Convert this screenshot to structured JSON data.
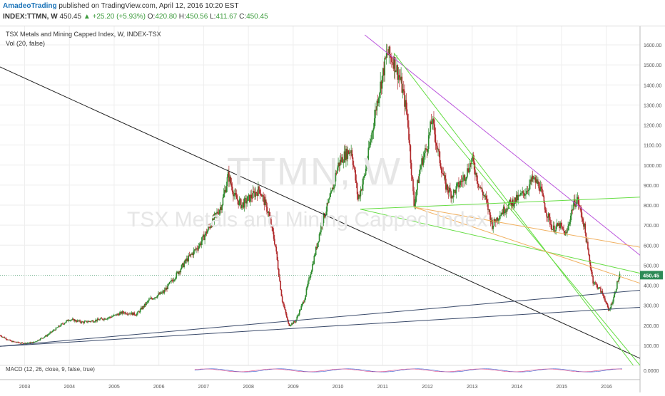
{
  "header": {
    "author": "AmadeoTrading",
    "published_text": "published on TradingView.com, April 12, 2016 10:20 EST",
    "symbol_line": "INDEX:TTMN, W",
    "last": "450.45",
    "change": "▲ +25.20 (+5.93%)",
    "open_label": "O:",
    "open": "420.80",
    "high_label": "H:",
    "high": "450.56",
    "low_label": "L:",
    "low": "411.67",
    "close_label": "C:",
    "close": "450.45"
  },
  "legend": {
    "title": "TSX Metals and Mining Capped Index, W, INDEX-TSX",
    "volume": "Vol (20, false)"
  },
  "watermark": {
    "symbol": "TTMN, W",
    "name": "TSX Metals and Mining Capped Index"
  },
  "macd_label": "MACD (12, 26, close, 9, false, true)",
  "macd_value": "0.0000",
  "price_tag": "450.45",
  "colors": {
    "up": "#2e8b2e",
    "down": "#b0282a",
    "green_line": "#66dd44",
    "purple_line": "#bb55dd",
    "orange_line": "#f0b060",
    "blue_line": "#3a4a6a",
    "black_line": "#222222",
    "price_tag_bg": "#2e8b57"
  },
  "chart_data": {
    "type": "candlestick",
    "title": "TSX Metals and Mining Capped Index, W, INDEX-TSX",
    "ylim": [
      0,
      1650
    ],
    "y_ticks": [
      "100.00",
      "200.00",
      "300.00",
      "400.00",
      "500.00",
      "600.00",
      "700.00",
      "800.00",
      "900.00",
      "1000.00",
      "1100.00",
      "1200.00",
      "1300.00",
      "1400.00",
      "1500.00",
      "1600.00"
    ],
    "y_tick_values": [
      100,
      200,
      300,
      400,
      500,
      600,
      700,
      800,
      900,
      1000,
      1100,
      1200,
      1300,
      1400,
      1500,
      1600
    ],
    "x_ticks": [
      "2003",
      "2004",
      "2005",
      "2006",
      "2007",
      "2008",
      "2009",
      "2010",
      "2011",
      "2012",
      "2013",
      "2014",
      "2015",
      "2016"
    ],
    "x_tick_years": [
      2003,
      2004,
      2005,
      2006,
      2007,
      2008,
      2009,
      2010,
      2011,
      2012,
      2013,
      2014,
      2015,
      2016
    ],
    "xlim": [
      2002.45,
      2016.75
    ],
    "price_path": [
      [
        2002.45,
        150
      ],
      [
        2002.7,
        120
      ],
      [
        2002.95,
        110
      ],
      [
        2003.2,
        115
      ],
      [
        2003.5,
        150
      ],
      [
        2003.8,
        200
      ],
      [
        2004.0,
        230
      ],
      [
        2004.3,
        215
      ],
      [
        2004.6,
        225
      ],
      [
        2004.9,
        240
      ],
      [
        2005.2,
        265
      ],
      [
        2005.5,
        255
      ],
      [
        2005.8,
        330
      ],
      [
        2006.1,
        365
      ],
      [
        2006.35,
        440
      ],
      [
        2006.6,
        520
      ],
      [
        2006.9,
        600
      ],
      [
        2007.15,
        700
      ],
      [
        2007.4,
        800
      ],
      [
        2007.55,
        950
      ],
      [
        2007.7,
        840
      ],
      [
        2007.85,
        800
      ],
      [
        2008.0,
        830
      ],
      [
        2008.25,
        880
      ],
      [
        2008.45,
        760
      ],
      [
        2008.6,
        600
      ],
      [
        2008.75,
        330
      ],
      [
        2008.9,
        200
      ],
      [
        2009.05,
        220
      ],
      [
        2009.25,
        330
      ],
      [
        2009.45,
        520
      ],
      [
        2009.65,
        720
      ],
      [
        2009.85,
        850
      ],
      [
        2010.0,
        1000
      ],
      [
        2010.15,
        1050
      ],
      [
        2010.3,
        1080
      ],
      [
        2010.45,
        830
      ],
      [
        2010.6,
        950
      ],
      [
        2010.75,
        1150
      ],
      [
        2010.9,
        1350
      ],
      [
        2011.0,
        1450
      ],
      [
        2011.1,
        1560
      ],
      [
        2011.25,
        1520
      ],
      [
        2011.4,
        1420
      ],
      [
        2011.55,
        1250
      ],
      [
        2011.7,
        800
      ],
      [
        2011.85,
        1000
      ],
      [
        2012.0,
        1100
      ],
      [
        2012.1,
        1230
      ],
      [
        2012.25,
        1050
      ],
      [
        2012.4,
        900
      ],
      [
        2012.55,
        850
      ],
      [
        2012.7,
        900
      ],
      [
        2012.85,
        950
      ],
      [
        2013.0,
        1030
      ],
      [
        2013.15,
        900
      ],
      [
        2013.3,
        830
      ],
      [
        2013.45,
        700
      ],
      [
        2013.6,
        750
      ],
      [
        2013.8,
        800
      ],
      [
        2014.0,
        830
      ],
      [
        2014.2,
        870
      ],
      [
        2014.35,
        930
      ],
      [
        2014.5,
        900
      ],
      [
        2014.65,
        770
      ],
      [
        2014.8,
        680
      ],
      [
        2014.95,
        700
      ],
      [
        2015.1,
        650
      ],
      [
        2015.25,
        800
      ],
      [
        2015.35,
        830
      ],
      [
        2015.5,
        700
      ],
      [
        2015.6,
        550
      ],
      [
        2015.7,
        420
      ],
      [
        2015.85,
        380
      ],
      [
        2015.95,
        340
      ],
      [
        2016.05,
        270
      ],
      [
        2016.15,
        330
      ],
      [
        2016.25,
        420
      ],
      [
        2016.3,
        450
      ]
    ],
    "trendlines": [
      {
        "color": "black",
        "p1": [
          2002.45,
          1490
        ],
        "p2": [
          2016.75,
          35
        ]
      },
      {
        "color": "blue",
        "p1": [
          2002.45,
          95
        ],
        "p2": [
          2016.75,
          375
        ]
      },
      {
        "color": "blue",
        "p1": [
          2002.45,
          95
        ],
        "p2": [
          2016.75,
          290
        ]
      },
      {
        "color": "purple",
        "p1": [
          2010.6,
          1650
        ],
        "p2": [
          2016.75,
          550
        ]
      },
      {
        "color": "green",
        "p1": [
          2010.5,
          780
        ],
        "p2": [
          2016.75,
          460
        ]
      },
      {
        "color": "green",
        "p1": [
          2010.5,
          780
        ],
        "p2": [
          2016.75,
          840
        ]
      },
      {
        "color": "green",
        "p1": [
          2011.25,
          1560
        ],
        "p2": [
          2016.6,
          0
        ]
      },
      {
        "color": "green",
        "p1": [
          2012.15,
          1240
        ],
        "p2": [
          2016.75,
          0
        ]
      },
      {
        "color": "orange",
        "p1": [
          2011.7,
          790
        ],
        "p2": [
          2016.75,
          590
        ]
      },
      {
        "color": "orange",
        "p1": [
          2011.7,
          790
        ],
        "p2": [
          2016.75,
          410
        ]
      }
    ]
  }
}
